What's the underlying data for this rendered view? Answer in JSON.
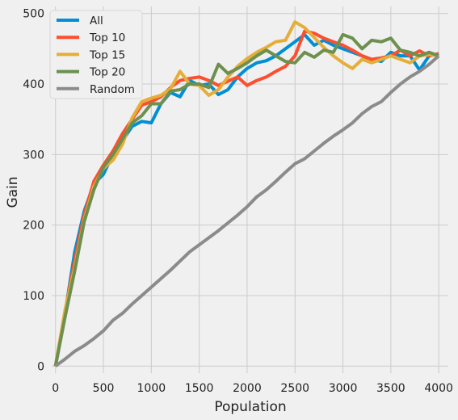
{
  "chart_data": {
    "type": "line",
    "title": "",
    "xlabel": "Population",
    "ylabel": "Gain",
    "xlim": [
      -40,
      4100
    ],
    "ylim": [
      -10,
      510
    ],
    "x_ticks": [
      0,
      500,
      1000,
      1500,
      2000,
      2500,
      3000,
      3500,
      4000
    ],
    "y_ticks": [
      0,
      100,
      200,
      300,
      400,
      500
    ],
    "grid": true,
    "legend_position": "top-left",
    "series": [
      {
        "name": "All",
        "color": "#008fd5",
        "points": [
          [
            0,
            0
          ],
          [
            100,
            75
          ],
          [
            200,
            162
          ],
          [
            300,
            220
          ],
          [
            400,
            258
          ],
          [
            500,
            272
          ],
          [
            600,
            300
          ],
          [
            700,
            320
          ],
          [
            800,
            340
          ],
          [
            900,
            347
          ],
          [
            1000,
            345
          ],
          [
            1100,
            372
          ],
          [
            1200,
            388
          ],
          [
            1300,
            382
          ],
          [
            1400,
            405
          ],
          [
            1500,
            398
          ],
          [
            1600,
            400
          ],
          [
            1700,
            385
          ],
          [
            1800,
            392
          ],
          [
            1900,
            410
          ],
          [
            2000,
            422
          ],
          [
            2100,
            430
          ],
          [
            2200,
            433
          ],
          [
            2300,
            440
          ],
          [
            2400,
            450
          ],
          [
            2500,
            460
          ],
          [
            2600,
            470
          ],
          [
            2700,
            455
          ],
          [
            2800,
            462
          ],
          [
            2900,
            455
          ],
          [
            3000,
            450
          ],
          [
            3100,
            445
          ],
          [
            3200,
            440
          ],
          [
            3300,
            435
          ],
          [
            3400,
            432
          ],
          [
            3500,
            445
          ],
          [
            3600,
            440
          ],
          [
            3700,
            440
          ],
          [
            3800,
            420
          ],
          [
            3900,
            440
          ],
          [
            4000,
            443
          ]
        ]
      },
      {
        "name": "Top 10",
        "color": "#fc4f30",
        "points": [
          [
            0,
            0
          ],
          [
            100,
            78
          ],
          [
            200,
            150
          ],
          [
            300,
            215
          ],
          [
            400,
            262
          ],
          [
            500,
            285
          ],
          [
            600,
            305
          ],
          [
            700,
            330
          ],
          [
            800,
            350
          ],
          [
            900,
            370
          ],
          [
            1000,
            375
          ],
          [
            1100,
            382
          ],
          [
            1200,
            395
          ],
          [
            1300,
            405
          ],
          [
            1400,
            408
          ],
          [
            1500,
            410
          ],
          [
            1600,
            405
          ],
          [
            1700,
            398
          ],
          [
            1800,
            404
          ],
          [
            1900,
            410
          ],
          [
            2000,
            398
          ],
          [
            2100,
            405
          ],
          [
            2200,
            410
          ],
          [
            2300,
            418
          ],
          [
            2400,
            425
          ],
          [
            2500,
            440
          ],
          [
            2600,
            475
          ],
          [
            2700,
            472
          ],
          [
            2800,
            465
          ],
          [
            2900,
            460
          ],
          [
            3000,
            455
          ],
          [
            3100,
            448
          ],
          [
            3200,
            440
          ],
          [
            3300,
            435
          ],
          [
            3400,
            437
          ],
          [
            3500,
            440
          ],
          [
            3600,
            448
          ],
          [
            3700,
            440
          ],
          [
            3800,
            447
          ],
          [
            3900,
            440
          ],
          [
            4000,
            443
          ]
        ]
      },
      {
        "name": "Top 15",
        "color": "#e5ae38",
        "points": [
          [
            0,
            0
          ],
          [
            100,
            80
          ],
          [
            200,
            140
          ],
          [
            300,
            208
          ],
          [
            400,
            255
          ],
          [
            500,
            280
          ],
          [
            600,
            292
          ],
          [
            700,
            315
          ],
          [
            800,
            352
          ],
          [
            900,
            375
          ],
          [
            1000,
            380
          ],
          [
            1100,
            384
          ],
          [
            1200,
            393
          ],
          [
            1300,
            418
          ],
          [
            1400,
            400
          ],
          [
            1500,
            398
          ],
          [
            1600,
            384
          ],
          [
            1700,
            392
          ],
          [
            1800,
            410
          ],
          [
            1900,
            425
          ],
          [
            2000,
            436
          ],
          [
            2100,
            445
          ],
          [
            2200,
            452
          ],
          [
            2300,
            460
          ],
          [
            2400,
            462
          ],
          [
            2500,
            488
          ],
          [
            2600,
            480
          ],
          [
            2700,
            466
          ],
          [
            2800,
            452
          ],
          [
            2900,
            440
          ],
          [
            3000,
            430
          ],
          [
            3100,
            422
          ],
          [
            3200,
            435
          ],
          [
            3300,
            430
          ],
          [
            3400,
            435
          ],
          [
            3500,
            440
          ],
          [
            3600,
            435
          ],
          [
            3700,
            430
          ],
          [
            3800,
            440
          ],
          [
            3900,
            442
          ],
          [
            4000,
            440
          ]
        ]
      },
      {
        "name": "Top 20",
        "color": "#6d904f",
        "points": [
          [
            0,
            0
          ],
          [
            100,
            70
          ],
          [
            200,
            135
          ],
          [
            300,
            205
          ],
          [
            400,
            250
          ],
          [
            500,
            282
          ],
          [
            600,
            300
          ],
          [
            700,
            322
          ],
          [
            800,
            345
          ],
          [
            900,
            355
          ],
          [
            1000,
            372
          ],
          [
            1100,
            372
          ],
          [
            1200,
            390
          ],
          [
            1300,
            392
          ],
          [
            1400,
            400
          ],
          [
            1500,
            400
          ],
          [
            1600,
            395
          ],
          [
            1700,
            428
          ],
          [
            1800,
            415
          ],
          [
            1900,
            422
          ],
          [
            2000,
            430
          ],
          [
            2100,
            440
          ],
          [
            2200,
            448
          ],
          [
            2300,
            440
          ],
          [
            2400,
            432
          ],
          [
            2500,
            430
          ],
          [
            2600,
            445
          ],
          [
            2700,
            438
          ],
          [
            2800,
            448
          ],
          [
            2900,
            445
          ],
          [
            3000,
            470
          ],
          [
            3100,
            465
          ],
          [
            3200,
            450
          ],
          [
            3300,
            462
          ],
          [
            3400,
            460
          ],
          [
            3500,
            465
          ],
          [
            3600,
            448
          ],
          [
            3700,
            445
          ],
          [
            3800,
            440
          ],
          [
            3900,
            445
          ],
          [
            4000,
            440
          ]
        ]
      },
      {
        "name": "Random",
        "color": "#8b8b8b",
        "points": [
          [
            0,
            0
          ],
          [
            100,
            10
          ],
          [
            200,
            21
          ],
          [
            300,
            29
          ],
          [
            400,
            39
          ],
          [
            500,
            50
          ],
          [
            600,
            65
          ],
          [
            700,
            75
          ],
          [
            800,
            88
          ],
          [
            900,
            100
          ],
          [
            1000,
            112
          ],
          [
            1100,
            124
          ],
          [
            1200,
            136
          ],
          [
            1300,
            149
          ],
          [
            1400,
            162
          ],
          [
            1500,
            172
          ],
          [
            1600,
            182
          ],
          [
            1700,
            192
          ],
          [
            1800,
            203
          ],
          [
            1900,
            214
          ],
          [
            2000,
            226
          ],
          [
            2100,
            240
          ],
          [
            2200,
            250
          ],
          [
            2300,
            262
          ],
          [
            2400,
            275
          ],
          [
            2500,
            287
          ],
          [
            2600,
            294
          ],
          [
            2700,
            305
          ],
          [
            2800,
            316
          ],
          [
            2900,
            326
          ],
          [
            3000,
            335
          ],
          [
            3100,
            345
          ],
          [
            3200,
            358
          ],
          [
            3300,
            368
          ],
          [
            3400,
            375
          ],
          [
            3500,
            388
          ],
          [
            3600,
            400
          ],
          [
            3700,
            410
          ],
          [
            3800,
            418
          ],
          [
            3900,
            428
          ],
          [
            4000,
            440
          ]
        ]
      }
    ]
  }
}
